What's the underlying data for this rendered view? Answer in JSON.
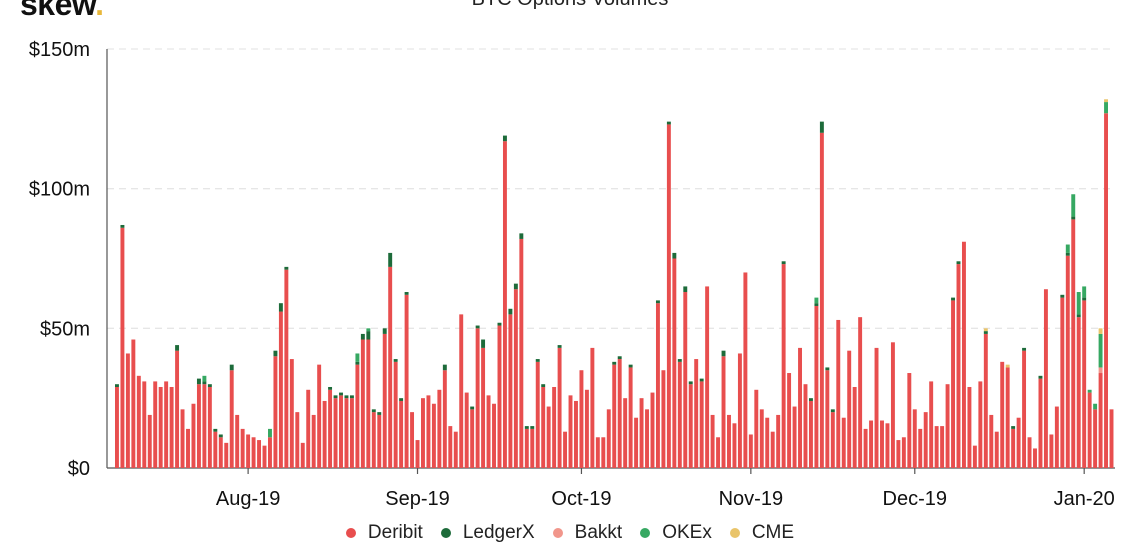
{
  "header": {
    "brand": "skew",
    "brand_dot": "."
  },
  "chart_data": {
    "type": "bar",
    "stacked": true,
    "title": "BTC Options Volumes",
    "xlabel": "",
    "ylabel": "",
    "ylim": [
      0,
      150
    ],
    "yticks": [
      {
        "value": 0,
        "label": "$0"
      },
      {
        "value": 50,
        "label": "$50m"
      },
      {
        "value": 100,
        "label": "$100m"
      },
      {
        "value": 150,
        "label": "$150m"
      }
    ],
    "xticks": [
      {
        "day": 24,
        "label": "Aug-19"
      },
      {
        "day": 55,
        "label": "Sep-19"
      },
      {
        "day": 85,
        "label": "Oct-19"
      },
      {
        "day": 116,
        "label": "Nov-19"
      },
      {
        "day": 146,
        "label": "Dec-19"
      },
      {
        "day": 177,
        "label": "Jan-20"
      }
    ],
    "grid": true,
    "legend_position": "bottom",
    "series": [
      {
        "name": "Deribit",
        "color": "#e84e4e",
        "values": [
          29,
          86,
          41,
          46,
          33,
          31,
          19,
          31,
          29,
          31,
          29,
          42,
          21,
          14,
          23,
          30,
          30,
          29,
          13,
          11,
          9,
          35,
          19,
          14,
          12,
          11,
          10,
          8,
          11,
          40,
          56,
          71,
          39,
          20,
          9,
          28,
          19,
          37,
          24,
          28,
          25,
          26,
          25,
          25,
          37,
          46,
          46,
          20,
          19,
          48,
          72,
          38,
          24,
          62,
          20,
          10,
          25,
          26,
          23,
          28,
          35,
          15,
          13,
          55,
          27,
          21,
          50,
          43,
          26,
          23,
          51,
          117,
          55,
          64,
          82,
          14,
          14,
          38,
          29,
          22,
          29,
          43,
          13,
          26,
          24,
          35,
          28,
          43,
          11,
          11,
          21,
          37,
          39,
          25,
          36,
          18,
          25,
          21,
          27,
          59,
          35,
          123,
          75,
          38,
          63,
          30,
          39,
          31,
          65,
          19,
          11,
          40,
          19,
          16,
          41,
          70,
          12,
          28,
          21,
          18,
          13,
          19,
          73,
          34,
          22,
          43,
          30,
          24,
          58,
          120,
          35,
          20,
          53,
          18,
          42,
          29,
          54,
          14,
          17,
          43,
          17,
          16,
          45,
          10,
          11,
          34,
          21,
          14,
          20,
          31,
          15,
          15,
          30,
          60,
          73,
          81,
          29,
          8,
          31,
          48,
          19,
          13,
          38,
          36,
          14,
          18,
          42,
          11,
          7,
          32,
          64,
          12,
          22,
          61,
          76,
          89,
          54,
          60,
          27,
          21,
          34,
          127,
          21
        ]
      },
      {
        "name": "LedgerX",
        "color": "#1d6b3a",
        "values": [
          1,
          1,
          0,
          0,
          0,
          0,
          0,
          0,
          0,
          0,
          0,
          2,
          0,
          0,
          0,
          2,
          1,
          1,
          1,
          1,
          0,
          2,
          0,
          0,
          0,
          0,
          0,
          0,
          0,
          2,
          3,
          1,
          0,
          0,
          0,
          0,
          0,
          0,
          0,
          1,
          1,
          1,
          1,
          1,
          1,
          2,
          3,
          1,
          1,
          2,
          5,
          1,
          1,
          1,
          0,
          0,
          0,
          0,
          0,
          0,
          2,
          0,
          0,
          0,
          0,
          1,
          1,
          3,
          0,
          0,
          1,
          2,
          2,
          2,
          2,
          1,
          1,
          1,
          1,
          0,
          0,
          1,
          0,
          0,
          0,
          0,
          0,
          0,
          0,
          0,
          0,
          1,
          1,
          0,
          1,
          0,
          0,
          0,
          0,
          1,
          0,
          1,
          2,
          1,
          2,
          1,
          0,
          1,
          0,
          0,
          0,
          2,
          0,
          0,
          0,
          0,
          0,
          0,
          0,
          0,
          0,
          0,
          1,
          0,
          0,
          0,
          0,
          1,
          1,
          4,
          1,
          1,
          0,
          0,
          0,
          0,
          0,
          0,
          0,
          0,
          0,
          0,
          0,
          0,
          0,
          0,
          0,
          0,
          0,
          0,
          0,
          0,
          0,
          1,
          1,
          0,
          0,
          0,
          0,
          1,
          0,
          0,
          0,
          0,
          1,
          0,
          1,
          0,
          0,
          1,
          0,
          0,
          0,
          1,
          1,
          1,
          1,
          1,
          0,
          0,
          0,
          0,
          0
        ]
      },
      {
        "name": "Bakkt",
        "color": "#f1968b",
        "values": [
          0,
          0,
          0,
          0,
          0,
          0,
          0,
          0,
          0,
          0,
          0,
          0,
          0,
          0,
          0,
          0,
          0,
          0,
          0,
          0,
          0,
          0,
          0,
          0,
          0,
          0,
          0,
          0,
          0,
          0,
          0,
          0,
          0,
          0,
          0,
          0,
          0,
          0,
          0,
          0,
          0,
          0,
          0,
          0,
          0,
          0,
          0,
          0,
          0,
          0,
          0,
          0,
          0,
          0,
          0,
          0,
          0,
          0,
          0,
          0,
          0,
          0,
          0,
          0,
          0,
          0,
          0,
          0,
          0,
          0,
          0,
          0,
          0,
          0,
          0,
          0,
          0,
          0,
          0,
          0,
          0,
          0,
          0,
          0,
          0,
          0,
          0,
          0,
          0,
          0,
          0,
          0,
          0,
          0,
          0,
          0,
          0,
          0,
          0,
          0,
          0,
          0,
          0,
          0,
          0,
          0,
          0,
          0,
          0,
          0,
          0,
          0,
          0,
          0,
          0,
          0,
          0,
          0,
          0,
          0,
          0,
          0,
          0,
          0,
          0,
          0,
          0,
          0,
          0,
          0,
          0,
          0,
          0,
          0,
          0,
          0,
          0,
          0,
          0,
          0,
          0,
          0,
          0,
          0,
          0,
          0,
          0,
          0,
          0,
          0,
          0,
          0,
          0,
          0,
          0,
          0,
          0,
          0,
          0,
          0,
          0,
          0,
          0,
          0,
          0,
          0,
          0,
          0,
          0,
          0,
          0,
          0,
          0,
          0,
          0,
          0,
          0,
          0,
          0,
          0,
          2,
          0,
          0
        ]
      },
      {
        "name": "OKEx",
        "color": "#36a862",
        "values": [
          0,
          0,
          0,
          0,
          0,
          0,
          0,
          0,
          0,
          0,
          0,
          0,
          0,
          0,
          0,
          0,
          2,
          0,
          0,
          0,
          0,
          0,
          0,
          0,
          0,
          0,
          0,
          0,
          3,
          0,
          0,
          0,
          0,
          0,
          0,
          0,
          0,
          0,
          0,
          0,
          0,
          0,
          0,
          0,
          3,
          0,
          1,
          0,
          0,
          0,
          0,
          0,
          0,
          0,
          0,
          0,
          0,
          0,
          0,
          0,
          0,
          0,
          0,
          0,
          0,
          0,
          0,
          0,
          0,
          0,
          0,
          0,
          0,
          0,
          0,
          0,
          0,
          0,
          0,
          0,
          0,
          0,
          0,
          0,
          0,
          0,
          0,
          0,
          0,
          0,
          0,
          0,
          0,
          0,
          0,
          0,
          0,
          0,
          0,
          0,
          0,
          0,
          0,
          0,
          0,
          0,
          0,
          0,
          0,
          0,
          0,
          0,
          0,
          0,
          0,
          0,
          0,
          0,
          0,
          0,
          0,
          0,
          0,
          0,
          0,
          0,
          0,
          0,
          2,
          0,
          0,
          0,
          0,
          0,
          0,
          0,
          0,
          0,
          0,
          0,
          0,
          0,
          0,
          0,
          0,
          0,
          0,
          0,
          0,
          0,
          0,
          0,
          0,
          0,
          0,
          0,
          0,
          0,
          0,
          0,
          0,
          0,
          0,
          0,
          0,
          0,
          0,
          0,
          0,
          0,
          0,
          0,
          0,
          0,
          3,
          8,
          8,
          4,
          1,
          2,
          12,
          4
        ]
      },
      {
        "name": "CME",
        "color": "#e9c46a",
        "values": [
          0,
          0,
          0,
          0,
          0,
          0,
          0,
          0,
          0,
          0,
          0,
          0,
          0,
          0,
          0,
          0,
          0,
          0,
          0,
          0,
          0,
          0,
          0,
          0,
          0,
          0,
          0,
          0,
          0,
          0,
          0,
          0,
          0,
          0,
          0,
          0,
          0,
          0,
          0,
          0,
          0,
          0,
          0,
          0,
          0,
          0,
          0,
          0,
          0,
          0,
          0,
          0,
          0,
          0,
          0,
          0,
          0,
          0,
          0,
          0,
          0,
          0,
          0,
          0,
          0,
          0,
          0,
          0,
          0,
          0,
          0,
          0,
          0,
          0,
          0,
          0,
          0,
          0,
          0,
          0,
          0,
          0,
          0,
          0,
          0,
          0,
          0,
          0,
          0,
          0,
          0,
          0,
          0,
          0,
          0,
          0,
          0,
          0,
          0,
          0,
          0,
          0,
          0,
          0,
          0,
          0,
          0,
          0,
          0,
          0,
          0,
          0,
          0,
          0,
          0,
          0,
          0,
          0,
          0,
          0,
          0,
          0,
          0,
          0,
          0,
          0,
          0,
          0,
          0,
          0,
          0,
          0,
          0,
          0,
          0,
          0,
          0,
          0,
          0,
          0,
          0,
          0,
          0,
          0,
          0,
          0,
          0,
          0,
          0,
          0,
          0,
          0,
          0,
          0,
          0,
          0,
          0,
          0,
          0,
          1,
          0,
          0,
          0,
          1,
          0,
          0,
          0,
          0,
          0,
          0,
          0,
          0,
          0,
          0,
          0,
          0,
          0,
          0,
          0,
          0,
          2,
          1,
          0
        ]
      }
    ]
  }
}
